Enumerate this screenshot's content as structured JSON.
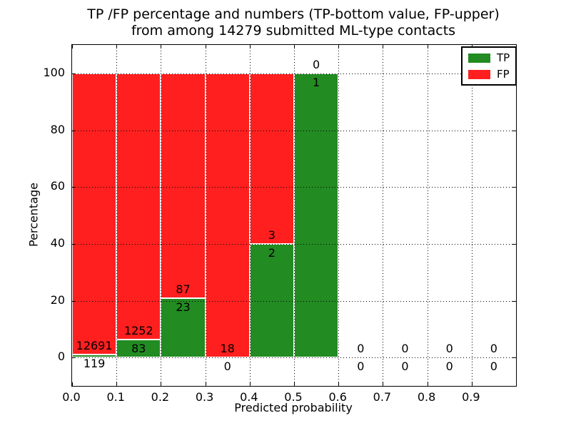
{
  "chart_data": {
    "type": "bar",
    "variant": "stacked-percentage",
    "title_line1": "TP /FP percentage and numbers (TP-bottom value, FP-upper)",
    "title_line2": "from among 14279 submitted ML-type contacts",
    "total_contacts": 14279,
    "xlabel": "Predicted probability",
    "ylabel": "Percentage",
    "xlim": [
      0,
      1.0
    ],
    "ylim": [
      -10,
      110
    ],
    "grid": true,
    "bin_width": 0.1,
    "x_ticks": [
      "0.0",
      "0.1",
      "0.2",
      "0.3",
      "0.4",
      "0.5",
      "0.6",
      "0.7",
      "0.8",
      "0.9"
    ],
    "x_tick_values": [
      0.0,
      0.1,
      0.2,
      0.3,
      0.4,
      0.5,
      0.6,
      0.7,
      0.8,
      0.9
    ],
    "y_ticks": [
      "0",
      "20",
      "40",
      "60",
      "80",
      "100"
    ],
    "y_tick_values": [
      0,
      20,
      40,
      60,
      80,
      100
    ],
    "bins": [
      {
        "x0": 0.0,
        "tp": 119,
        "fp": 12691
      },
      {
        "x0": 0.1,
        "tp": 83,
        "fp": 1252
      },
      {
        "x0": 0.2,
        "tp": 23,
        "fp": 87
      },
      {
        "x0": 0.3,
        "tp": 0,
        "fp": 18
      },
      {
        "x0": 0.4,
        "tp": 2,
        "fp": 3
      },
      {
        "x0": 0.5,
        "tp": 1,
        "fp": 0
      },
      {
        "x0": 0.6,
        "tp": 0,
        "fp": 0
      },
      {
        "x0": 0.7,
        "tp": 0,
        "fp": 0
      },
      {
        "x0": 0.8,
        "tp": 0,
        "fp": 0
      },
      {
        "x0": 0.9,
        "tp": 0,
        "fp": 0
      }
    ],
    "tp_percent": [
      0.93,
      6.22,
      20.91,
      0,
      40,
      100,
      0,
      0,
      0,
      0
    ],
    "fp_percent": [
      99.07,
      93.78,
      79.09,
      100,
      60,
      0,
      0,
      0,
      0,
      0
    ],
    "legend": {
      "position": "upper right",
      "entries": [
        {
          "label": "TP",
          "color": "#228b22"
        },
        {
          "label": "FP",
          "color": "#ff1f1f"
        }
      ]
    }
  },
  "colors": {
    "tp": "#228b22",
    "fp": "#ff1f1f",
    "background": "#ffffff",
    "grid": "#000000",
    "text": "#000000"
  }
}
